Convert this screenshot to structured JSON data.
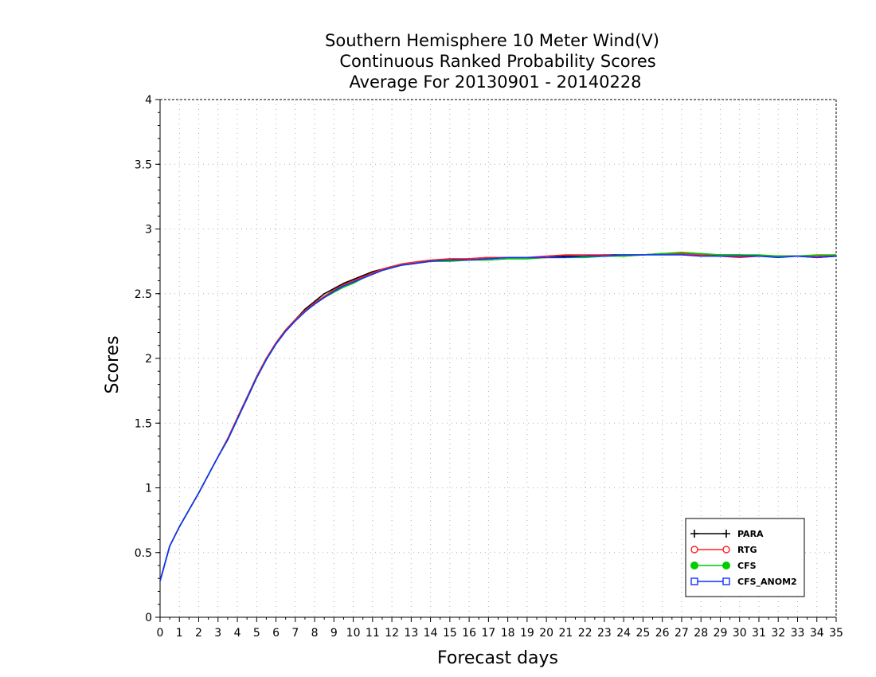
{
  "chart_data": {
    "type": "line",
    "title_lines": [
      "Southern Hemisphere 10 Meter Wind(V)",
      "Continuous Ranked Probability Scores",
      "Average For 20130901 - 20140228"
    ],
    "xlabel": "Forecast days",
    "ylabel": "Scores",
    "xlim": [
      0,
      35
    ],
    "ylim": [
      0,
      4
    ],
    "x_ticks": [
      0,
      1,
      2,
      3,
      4,
      5,
      6,
      7,
      8,
      9,
      10,
      11,
      12,
      13,
      14,
      15,
      16,
      17,
      18,
      19,
      20,
      21,
      22,
      23,
      24,
      25,
      26,
      27,
      28,
      29,
      30,
      31,
      32,
      33,
      34,
      35
    ],
    "y_ticks": [
      {
        "value": 0,
        "label": "0"
      },
      {
        "value": 0.5,
        "label": "0.5"
      },
      {
        "value": 1,
        "label": "1"
      },
      {
        "value": 1.5,
        "label": "1.5"
      },
      {
        "value": 2,
        "label": "2"
      },
      {
        "value": 2.5,
        "label": "2.5"
      },
      {
        "value": 3,
        "label": "3"
      },
      {
        "value": 3.5,
        "label": "3.5"
      },
      {
        "value": 4,
        "label": "4"
      }
    ],
    "grid": true,
    "legend_position": "bottom-right",
    "x": [
      0,
      0.5,
      1,
      1.5,
      2,
      2.5,
      3,
      3.5,
      4,
      4.5,
      5,
      5.5,
      6,
      6.5,
      7,
      7.5,
      8,
      8.5,
      9,
      9.5,
      10,
      10.5,
      11,
      11.5,
      12,
      12.5,
      13,
      13.5,
      14,
      15,
      16,
      17,
      18,
      19,
      20,
      21,
      22,
      23,
      24,
      25,
      26,
      27,
      28,
      29,
      30,
      31,
      32,
      33,
      34,
      35
    ],
    "series": [
      {
        "name": "PARA",
        "color": "#000000",
        "marker": "plus",
        "values": [
          0.28,
          0.55,
          0.7,
          0.83,
          0.96,
          1.1,
          1.24,
          1.38,
          1.54,
          1.7,
          1.86,
          2.0,
          2.12,
          2.22,
          2.3,
          2.38,
          2.44,
          2.5,
          2.54,
          2.58,
          2.61,
          2.64,
          2.67,
          2.69,
          2.71,
          2.72,
          2.73,
          2.74,
          2.75,
          2.76,
          2.77,
          2.78,
          2.78,
          2.78,
          2.78,
          2.79,
          2.79,
          2.8,
          2.8,
          2.8,
          2.81,
          2.81,
          2.8,
          2.8,
          2.8,
          2.79,
          2.79,
          2.79,
          2.78,
          2.79
        ]
      },
      {
        "name": "RTG",
        "color": "#ff2020",
        "marker": "open-circle",
        "values": [
          0.28,
          0.55,
          0.7,
          0.83,
          0.96,
          1.1,
          1.24,
          1.38,
          1.54,
          1.7,
          1.86,
          2.0,
          2.12,
          2.22,
          2.3,
          2.37,
          2.43,
          2.48,
          2.53,
          2.57,
          2.6,
          2.63,
          2.66,
          2.69,
          2.71,
          2.73,
          2.74,
          2.75,
          2.76,
          2.77,
          2.77,
          2.78,
          2.78,
          2.78,
          2.79,
          2.8,
          2.8,
          2.8,
          2.79,
          2.8,
          2.81,
          2.81,
          2.8,
          2.79,
          2.78,
          2.79,
          2.79,
          2.79,
          2.79,
          2.8
        ]
      },
      {
        "name": "CFS",
        "color": "#00cc00",
        "marker": "filled-circle",
        "values": [
          0.28,
          0.55,
          0.7,
          0.83,
          0.96,
          1.1,
          1.24,
          1.37,
          1.53,
          1.69,
          1.85,
          1.99,
          2.11,
          2.21,
          2.29,
          2.36,
          2.42,
          2.47,
          2.51,
          2.55,
          2.58,
          2.62,
          2.65,
          2.68,
          2.7,
          2.72,
          2.73,
          2.74,
          2.75,
          2.75,
          2.76,
          2.76,
          2.77,
          2.77,
          2.78,
          2.78,
          2.78,
          2.79,
          2.79,
          2.8,
          2.81,
          2.82,
          2.81,
          2.8,
          2.8,
          2.8,
          2.79,
          2.79,
          2.8,
          2.8
        ]
      },
      {
        "name": "CFS_ANOM2",
        "color": "#1030ff",
        "marker": "open-square",
        "values": [
          0.28,
          0.55,
          0.7,
          0.83,
          0.96,
          1.1,
          1.24,
          1.37,
          1.53,
          1.69,
          1.85,
          1.99,
          2.11,
          2.21,
          2.29,
          2.36,
          2.42,
          2.47,
          2.52,
          2.56,
          2.59,
          2.62,
          2.65,
          2.68,
          2.7,
          2.72,
          2.73,
          2.74,
          2.75,
          2.76,
          2.76,
          2.77,
          2.78,
          2.78,
          2.78,
          2.78,
          2.79,
          2.79,
          2.8,
          2.8,
          2.8,
          2.8,
          2.79,
          2.79,
          2.79,
          2.79,
          2.78,
          2.79,
          2.78,
          2.79
        ]
      }
    ]
  }
}
